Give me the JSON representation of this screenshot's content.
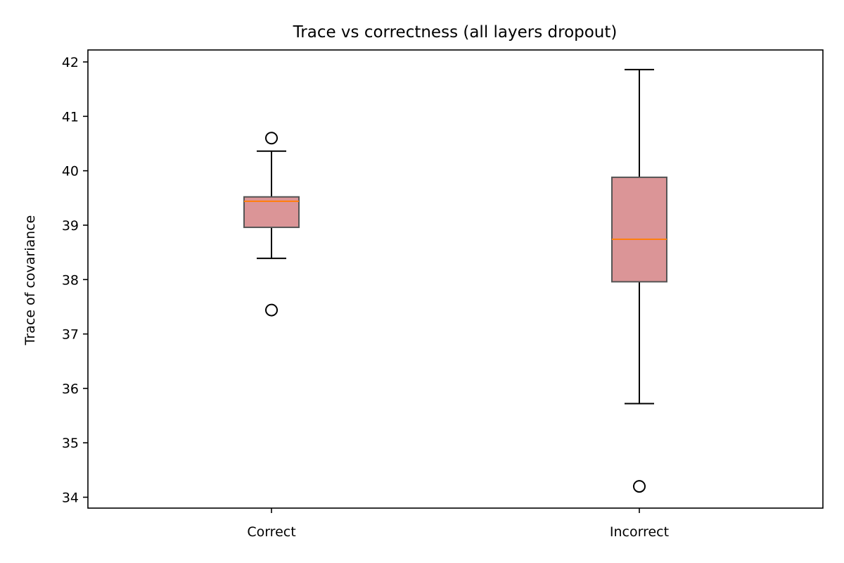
{
  "chart_data": {
    "type": "box",
    "title": "Trace vs correctness (all layers dropout)",
    "xlabel": "",
    "ylabel": "Trace of covariance",
    "ylim": [
      33.8,
      42.22
    ],
    "yticks": [
      34,
      35,
      36,
      37,
      38,
      39,
      40,
      41,
      42
    ],
    "categories": [
      "Correct",
      "Incorrect"
    ],
    "boxes": [
      {
        "category": "Correct",
        "whisker_low": 38.39,
        "q1": 38.96,
        "median": 39.44,
        "q3": 39.52,
        "whisker_high": 40.36,
        "outliers": [
          40.6,
          37.44
        ]
      },
      {
        "category": "Incorrect",
        "whisker_low": 35.72,
        "q1": 37.96,
        "median": 38.74,
        "q3": 39.88,
        "whisker_high": 41.86,
        "outliers": [
          34.2
        ]
      }
    ],
    "colors": {
      "box_fill": "#db9597",
      "box_edge": "#555555",
      "median": "#ff7f0e",
      "whisker": "#000000",
      "outlier": "#000000"
    },
    "grid": false,
    "legend": "none"
  }
}
